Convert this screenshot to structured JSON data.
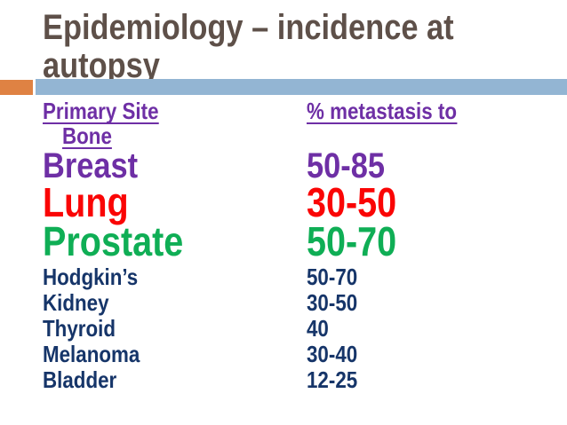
{
  "slide": {
    "title_line1": "Epidemiology – incidence at",
    "title_line2": "autopsy"
  },
  "table": {
    "header": {
      "site": "Primary Site",
      "value_line1": "% metastasis to",
      "value_line2": "Bone"
    },
    "rows": [
      {
        "site": "Breast",
        "value": "50-85"
      },
      {
        "site": "Lung",
        "value": "30-50"
      },
      {
        "site": "Prostate",
        "value": "50-70"
      },
      {
        "site": "Hodgkin’s",
        "value": "50-70"
      },
      {
        "site": "Kidney",
        "value": "30-50"
      },
      {
        "site": "Thyroid",
        "value": "40"
      },
      {
        "site": "Melanoma",
        "value": "30-40"
      },
      {
        "site": "Bladder",
        "value": "12-25"
      }
    ]
  },
  "colors": {
    "title": "#5e5049",
    "accent_orange": "#df8243",
    "accent_blue": "#93b5d3",
    "purple": "#6e2fa5",
    "red": "#fa0505",
    "green": "#0fae55",
    "navy": "#163569"
  }
}
